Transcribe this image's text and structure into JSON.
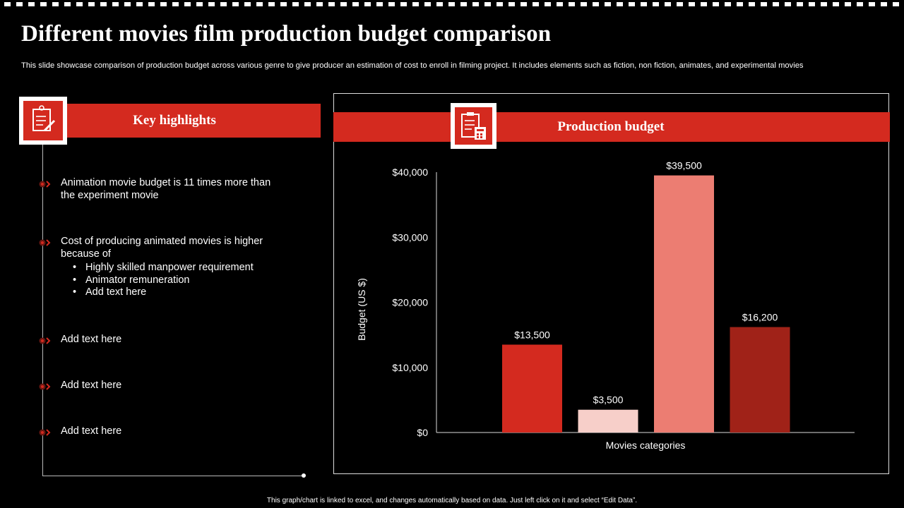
{
  "header": {
    "title": "Different movies film production budget comparison",
    "subtitle": "This slide showcase comparison of production budget across various genre to give producer an estimation of cost to enroll in filming project. It includes elements such as fiction, non fiction, animates, and experimental movies"
  },
  "left_panel": {
    "heading": "Key highlights",
    "icon": "checklist-pen-icon",
    "highlights": [
      {
        "text": "Animation movie budget is 11 times more than the experiment movie",
        "sub": []
      },
      {
        "text": "Cost of producing animated movies is higher because of",
        "sub": [
          "Highly skilled manpower requirement",
          "Animator remuneration",
          "Add text here"
        ]
      },
      {
        "text": "Add text here",
        "sub": []
      },
      {
        "text": "Add text here",
        "sub": []
      },
      {
        "text": "Add text here",
        "sub": []
      }
    ]
  },
  "right_panel": {
    "heading": "Production budget",
    "icon": "clipboard-calculator-icon"
  },
  "footer": {
    "note": "This graph/chart is linked to excel, and changes automatically based on data. Just left click on it and select “Edit Data”."
  },
  "colors": {
    "accent": "#d42a1f",
    "bars": [
      "#d42a1f",
      "#f7cfc9",
      "#ec7d72",
      "#a02218"
    ]
  },
  "chart_data": {
    "type": "bar",
    "categories": [
      "",
      "",
      "",
      ""
    ],
    "values": [
      13500,
      3500,
      39500,
      16200
    ],
    "data_labels": [
      "$13,500",
      "$3,500",
      "$39,500",
      "$16,200"
    ],
    "title": "",
    "xlabel": "Movies categories",
    "ylabel": "Budget (US $)",
    "ylim": [
      0,
      40000
    ],
    "yticks": [
      0,
      10000,
      20000,
      30000,
      40000
    ],
    "ytick_labels": [
      "$0",
      "$10,000",
      "$20,000",
      "$30,000",
      "$40,000"
    ],
    "grid": false,
    "legend": "none"
  }
}
